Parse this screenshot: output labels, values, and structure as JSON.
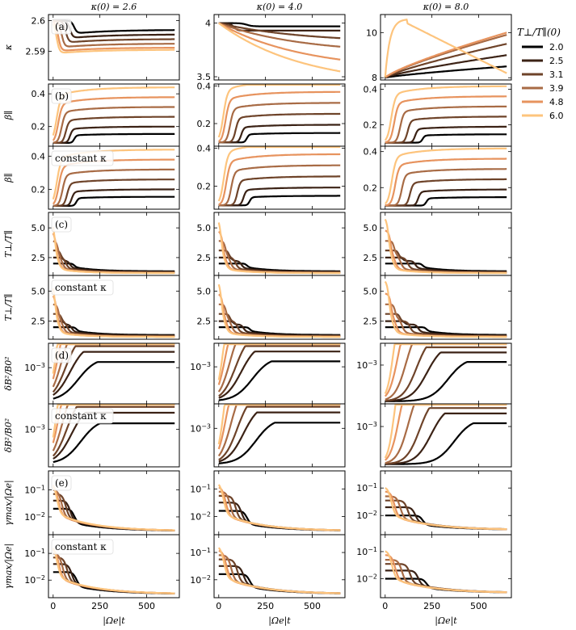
{
  "chart_data": {
    "type": "line",
    "columns": [
      {
        "title": "κ(0) = 2.6",
        "kappa0": 2.6
      },
      {
        "title": "κ(0) = 4.0",
        "kappa0": 4.0
      },
      {
        "title": "κ(0) = 8.0",
        "kappa0": 8.0
      }
    ],
    "xlabel": "|Ωe|t",
    "xlim": [
      -25,
      675
    ],
    "xticks": [
      0,
      250,
      500
    ],
    "legend": {
      "title": "T⊥/T∥(0)",
      "placement": "right",
      "entries": [
        "2.0",
        "2.5",
        "3.1",
        "3.9",
        "4.8",
        "6.0"
      ]
    },
    "colors": [
      "#000000",
      "#3b2215",
      "#6e4329",
      "#a86b45",
      "#e7935e",
      "#fdc47d"
    ],
    "series_anisotropy": [
      2.0,
      2.5,
      3.1,
      3.9,
      4.8,
      6.0
    ],
    "rows": [
      {
        "id": "kappa",
        "ylabel": "κ",
        "tag": "(a)",
        "constant_kappa": false,
        "yticks_by_col": [
          [
            2.59,
            2.6
          ],
          [
            3.5,
            4.0
          ],
          [
            8,
            10
          ]
        ]
      },
      {
        "id": "beta",
        "ylabel": "β∥",
        "tag": "(b)",
        "constant_kappa": false,
        "yticks_by_col": [
          [
            0.2,
            0.4
          ],
          [
            0.2,
            0.4
          ],
          [
            0.2,
            0.4
          ]
        ]
      },
      {
        "id": "beta_const",
        "ylabel": "β∥",
        "tag": "constant κ",
        "constant_kappa": true,
        "yticks_by_col": [
          [
            0.2,
            0.4
          ],
          [
            0.2,
            0.4
          ],
          [
            0.2,
            0.4
          ]
        ]
      },
      {
        "id": "T",
        "ylabel": "T⊥/T∥",
        "tag": "(c)",
        "constant_kappa": false,
        "yticks_by_col": [
          [
            2.5,
            5.0
          ],
          [
            2.5,
            5.0
          ],
          [
            2.5,
            5.0
          ]
        ]
      },
      {
        "id": "T_const",
        "ylabel": "T⊥/T∥",
        "tag": "constant κ",
        "constant_kappa": true,
        "yticks_by_col": [
          [
            2.5,
            5.0
          ],
          [
            2.5,
            5.0
          ],
          [
            2.5,
            5.0
          ]
        ]
      },
      {
        "id": "dB",
        "ylabel": "δB²/B0²",
        "tag": "(d)",
        "constant_kappa": false,
        "yticks_by_col": [
          [
            "10^-3"
          ],
          [
            "10^-3"
          ],
          [
            "10^-3"
          ]
        ]
      },
      {
        "id": "dB_const",
        "ylabel": "δB²/B0²",
        "tag": "constant κ",
        "constant_kappa": true,
        "yticks_by_col": [
          [
            "10^-3"
          ],
          [
            "10^-3"
          ],
          [
            "10^-3"
          ]
        ]
      },
      {
        "id": "gamma",
        "ylabel": "γmax/|Ωe|",
        "tag": "(e)",
        "constant_kappa": false,
        "yticks_by_col": [
          [
            "10^-1",
            "10^-2"
          ],
          [
            "10^-1",
            "10^-2"
          ],
          [
            "10^-1",
            "10^-2"
          ]
        ]
      },
      {
        "id": "gamma_const",
        "ylabel": "γmax/|Ωe|",
        "tag": "constant κ",
        "constant_kappa": true,
        "yticks_by_col": [
          [
            "10^-1",
            "10^-2"
          ],
          [
            "10^-1",
            "10^-2"
          ],
          [
            "10^-1",
            "10^-2"
          ]
        ]
      }
    ],
    "kappa_final": [
      [
        2.597,
        2.5955,
        2.594,
        2.5925,
        2.5912,
        2.5905
      ],
      [
        3.97,
        3.93,
        3.86,
        3.78,
        3.66,
        3.55
      ],
      [
        8.5,
        9.0,
        9.5,
        9.9,
        10.0,
        8.2
      ]
    ],
    "beta_final": [
      0.155,
      0.2,
      0.26,
      0.32,
      0.38,
      0.44
    ],
    "T_final": [
      1.35,
      1.3,
      1.25,
      1.22,
      1.2,
      1.2
    ],
    "gamma_initial_approx": [
      0.02,
      0.04,
      0.07,
      0.1,
      0.15,
      0.22
    ],
    "gamma_final_approx": 0.003
  }
}
